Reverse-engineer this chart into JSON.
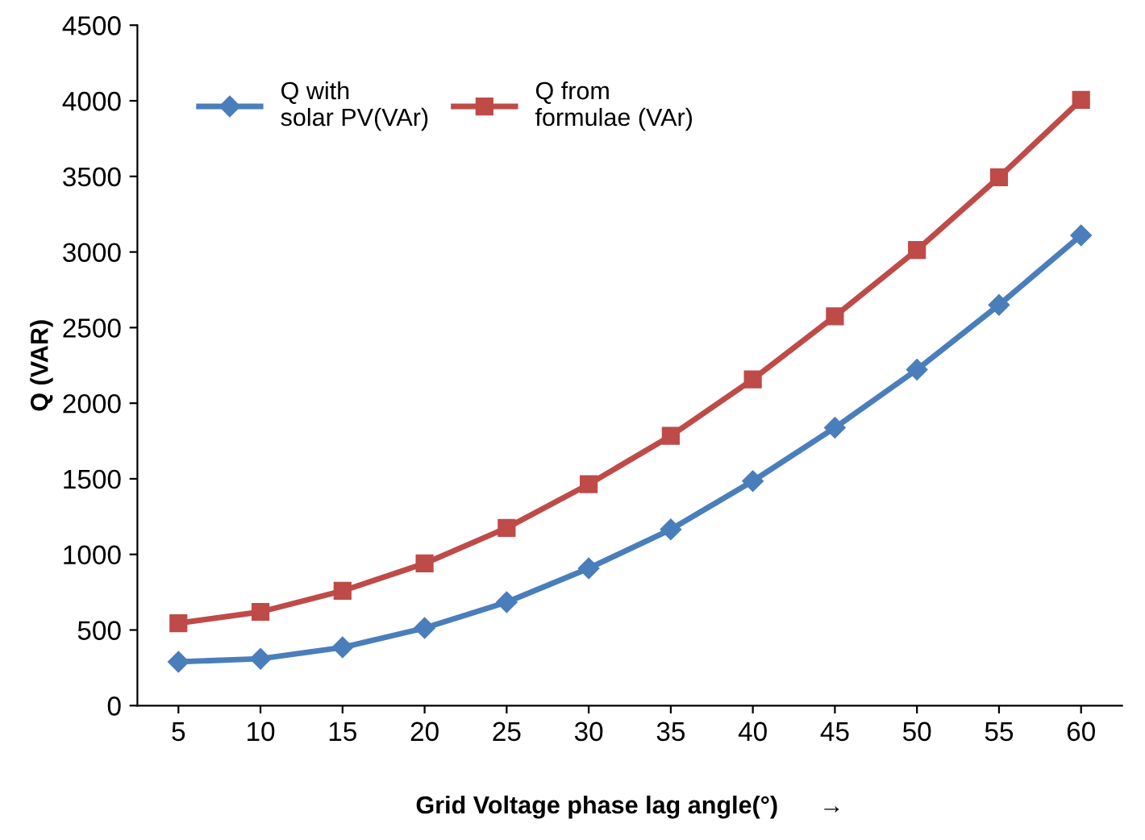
{
  "chart_data": {
    "type": "line",
    "xlabel": "Grid Voltage phase lag angle(°)      →",
    "ylabel": "Q (VAR)",
    "categories": [
      "5",
      "10",
      "15",
      "20",
      "25",
      "30",
      "35",
      "40",
      "45",
      "50",
      "55",
      "60"
    ],
    "series": [
      {
        "name": "Q with\nsolar PV(VAr)",
        "color": "#4a7ebb",
        "marker": "diamond",
        "values": [
          290,
          310,
          385,
          513,
          684,
          908,
          1165,
          1485,
          1838,
          2222,
          2650,
          3110
        ]
      },
      {
        "name": "Q from\nformulae (VAr)",
        "color": "#be4b48",
        "marker": "square",
        "values": [
          545,
          620,
          759,
          940,
          1175,
          1464,
          1784,
          2158,
          2575,
          3013,
          3494,
          4006
        ]
      }
    ],
    "ylim": [
      0,
      4500
    ],
    "yticks": [
      0,
      500,
      1000,
      1500,
      2000,
      2500,
      3000,
      3500,
      4000,
      4500
    ],
    "grid": false,
    "legend": "top left",
    "line_style": "solid"
  }
}
